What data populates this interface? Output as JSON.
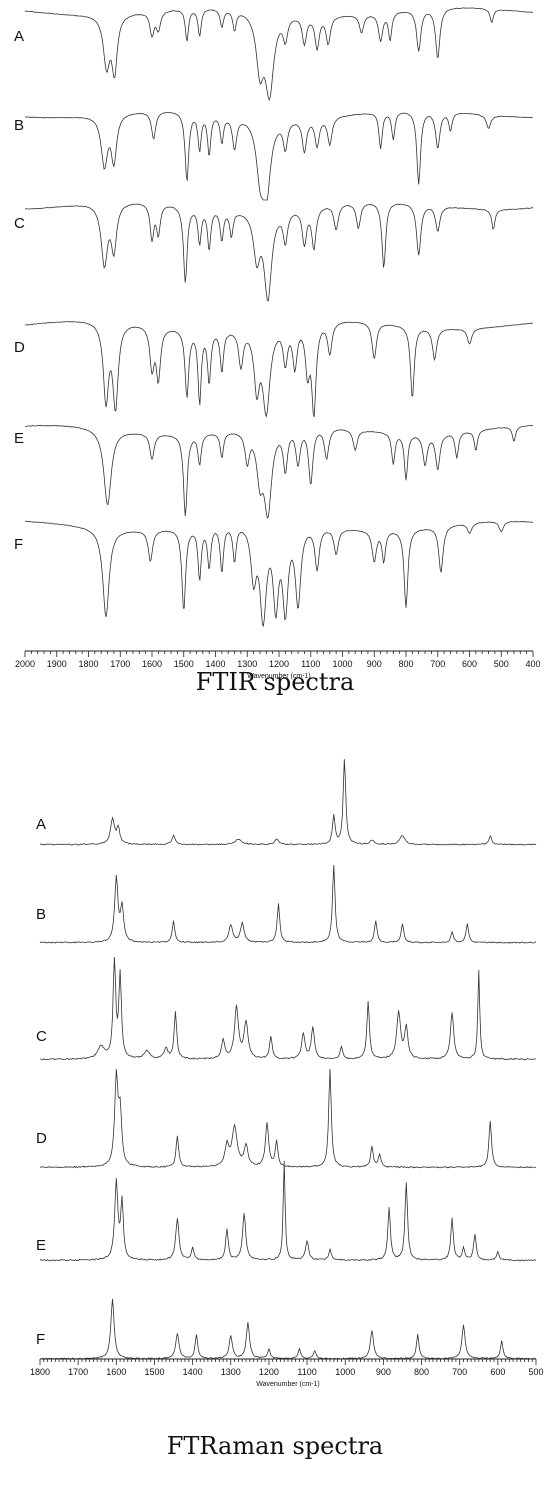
{
  "chart_data": [
    {
      "type": "line",
      "title": "FTIR spectra",
      "xlabel": "Wavenumber (cm-1)",
      "ylabel": "",
      "xlim": [
        2000,
        400
      ],
      "x_reversed": true,
      "grid": false,
      "xticks": [
        "2000",
        "1900",
        "1800",
        "1700",
        "1600",
        "1500",
        "1400",
        "1300",
        "1200",
        "1100",
        "1000",
        "900",
        "800",
        "700",
        "600",
        "500",
        "400"
      ],
      "series": [
        {
          "name": "A",
          "baseline": 0.03,
          "bands": [
            [
              1743,
              0.55,
              12
            ],
            [
              1718,
              0.6,
              10
            ],
            [
              1600,
              0.25,
              8
            ],
            [
              1580,
              0.2,
              8
            ],
            [
              1490,
              0.35,
              6
            ],
            [
              1450,
              0.3,
              6
            ],
            [
              1380,
              0.2,
              6
            ],
            [
              1340,
              0.22,
              6
            ],
            [
              1260,
              0.6,
              14
            ],
            [
              1230,
              0.85,
              16
            ],
            [
              1180,
              0.25,
              8
            ],
            [
              1120,
              0.3,
              8
            ],
            [
              1080,
              0.35,
              8
            ],
            [
              1045,
              0.3,
              8
            ],
            [
              940,
              0.2,
              8
            ],
            [
              880,
              0.3,
              8
            ],
            [
              850,
              0.3,
              6
            ],
            [
              760,
              0.45,
              8
            ],
            [
              700,
              0.55,
              8
            ],
            [
              530,
              0.15,
              6
            ]
          ]
        },
        {
          "name": "B",
          "baseline": 0.06,
          "bands": [
            [
              1750,
              0.55,
              12
            ],
            [
              1720,
              0.5,
              10
            ],
            [
              1595,
              0.3,
              8
            ],
            [
              1490,
              0.75,
              7
            ],
            [
              1450,
              0.4,
              6
            ],
            [
              1420,
              0.45,
              6
            ],
            [
              1380,
              0.3,
              6
            ],
            [
              1340,
              0.35,
              8
            ],
            [
              1260,
              0.5,
              14
            ],
            [
              1240,
              0.8,
              16
            ],
            [
              1180,
              0.3,
              8
            ],
            [
              1120,
              0.35,
              8
            ],
            [
              1080,
              0.3,
              8
            ],
            [
              1040,
              0.3,
              8
            ],
            [
              880,
              0.4,
              6
            ],
            [
              840,
              0.3,
              6
            ],
            [
              760,
              0.8,
              7
            ],
            [
              700,
              0.4,
              8
            ],
            [
              660,
              0.2,
              6
            ],
            [
              540,
              0.15,
              8
            ]
          ]
        },
        {
          "name": "C",
          "baseline": 0.03,
          "bands": [
            [
              1750,
              0.6,
              12
            ],
            [
              1720,
              0.45,
              10
            ],
            [
              1600,
              0.35,
              7
            ],
            [
              1580,
              0.3,
              7
            ],
            [
              1495,
              0.75,
              7
            ],
            [
              1450,
              0.35,
              6
            ],
            [
              1420,
              0.4,
              6
            ],
            [
              1380,
              0.3,
              6
            ],
            [
              1350,
              0.25,
              6
            ],
            [
              1270,
              0.45,
              12
            ],
            [
              1235,
              0.85,
              14
            ],
            [
              1180,
              0.3,
              8
            ],
            [
              1120,
              0.35,
              8
            ],
            [
              1090,
              0.4,
              8
            ],
            [
              1020,
              0.25,
              8
            ],
            [
              950,
              0.25,
              8
            ],
            [
              870,
              0.65,
              7
            ],
            [
              760,
              0.5,
              8
            ],
            [
              700,
              0.25,
              8
            ],
            [
              525,
              0.2,
              6
            ]
          ]
        },
        {
          "name": "D",
          "baseline": 0.02,
          "bands": [
            [
              1745,
              0.75,
              10
            ],
            [
              1715,
              0.8,
              10
            ],
            [
              1600,
              0.4,
              8
            ],
            [
              1580,
              0.5,
              8
            ],
            [
              1490,
              0.65,
              7
            ],
            [
              1450,
              0.7,
              6
            ],
            [
              1420,
              0.5,
              6
            ],
            [
              1380,
              0.4,
              6
            ],
            [
              1320,
              0.35,
              8
            ],
            [
              1270,
              0.55,
              10
            ],
            [
              1240,
              0.8,
              14
            ],
            [
              1180,
              0.35,
              8
            ],
            [
              1150,
              0.4,
              8
            ],
            [
              1110,
              0.45,
              8
            ],
            [
              1090,
              0.85,
              8
            ],
            [
              1040,
              0.3,
              8
            ],
            [
              900,
              0.35,
              8
            ],
            [
              780,
              0.7,
              7
            ],
            [
              710,
              0.3,
              8
            ],
            [
              600,
              0.15,
              8
            ]
          ]
        },
        {
          "name": "E",
          "baseline": 0.05,
          "bands": [
            [
              1740,
              0.75,
              14
            ],
            [
              1600,
              0.25,
              8
            ],
            [
              1495,
              0.8,
              7
            ],
            [
              1450,
              0.3,
              6
            ],
            [
              1380,
              0.25,
              6
            ],
            [
              1300,
              0.3,
              8
            ],
            [
              1260,
              0.45,
              12
            ],
            [
              1235,
              0.8,
              14
            ],
            [
              1180,
              0.4,
              8
            ],
            [
              1140,
              0.35,
              8
            ],
            [
              1100,
              0.55,
              8
            ],
            [
              1050,
              0.3,
              8
            ],
            [
              960,
              0.2,
              8
            ],
            [
              840,
              0.3,
              6
            ],
            [
              800,
              0.45,
              6
            ],
            [
              740,
              0.3,
              8
            ],
            [
              700,
              0.35,
              8
            ],
            [
              640,
              0.25,
              6
            ],
            [
              580,
              0.2,
              6
            ],
            [
              460,
              0.15,
              6
            ]
          ]
        },
        {
          "name": "F",
          "baseline": 0.03,
          "bands": [
            [
              1745,
              0.85,
              12
            ],
            [
              1605,
              0.3,
              8
            ],
            [
              1500,
              0.8,
              7
            ],
            [
              1450,
              0.5,
              6
            ],
            [
              1420,
              0.4,
              6
            ],
            [
              1380,
              0.45,
              6
            ],
            [
              1340,
              0.35,
              6
            ],
            [
              1280,
              0.5,
              10
            ],
            [
              1250,
              0.9,
              12
            ],
            [
              1210,
              0.75,
              10
            ],
            [
              1180,
              0.8,
              10
            ],
            [
              1140,
              0.75,
              10
            ],
            [
              1080,
              0.4,
              8
            ],
            [
              1020,
              0.25,
              8
            ],
            [
              900,
              0.3,
              8
            ],
            [
              870,
              0.3,
              6
            ],
            [
              800,
              0.75,
              7
            ],
            [
              690,
              0.45,
              8
            ],
            [
              600,
              0.1,
              8
            ],
            [
              500,
              0.1,
              8
            ]
          ]
        }
      ]
    },
    {
      "type": "line",
      "title": "FTRaman spectra",
      "xlabel": "Wavenumber (cm-1)",
      "ylabel": "",
      "xlim": [
        1800,
        500
      ],
      "x_reversed": true,
      "grid": false,
      "xticks": [
        "1800",
        "1700",
        "1600",
        "1500",
        "1400",
        "1300",
        "1200",
        "1100",
        "1000",
        "900",
        "800",
        "700",
        "600",
        "500"
      ],
      "series": [
        {
          "name": "A",
          "bands": [
            [
              1610,
              0.28,
              6
            ],
            [
              1595,
              0.18,
              5
            ],
            [
              1450,
              0.1,
              5
            ],
            [
              1280,
              0.06,
              10
            ],
            [
              1180,
              0.06,
              6
            ],
            [
              1030,
              0.32,
              4
            ],
            [
              1002,
              0.95,
              4
            ],
            [
              930,
              0.05,
              6
            ],
            [
              850,
              0.1,
              8
            ],
            [
              620,
              0.1,
              4
            ]
          ]
        },
        {
          "name": "B",
          "bands": [
            [
              1600,
              0.75,
              5
            ],
            [
              1585,
              0.4,
              5
            ],
            [
              1450,
              0.25,
              4
            ],
            [
              1300,
              0.2,
              6
            ],
            [
              1270,
              0.22,
              6
            ],
            [
              1175,
              0.45,
              4
            ],
            [
              1030,
              0.9,
              4
            ],
            [
              920,
              0.25,
              4
            ],
            [
              850,
              0.22,
              4
            ],
            [
              720,
              0.12,
              4
            ],
            [
              680,
              0.22,
              4
            ]
          ]
        },
        {
          "name": "C",
          "bands": [
            [
              1640,
              0.12,
              10
            ],
            [
              1605,
              0.95,
              4
            ],
            [
              1590,
              0.8,
              4
            ],
            [
              1520,
              0.08,
              8
            ],
            [
              1470,
              0.1,
              6
            ],
            [
              1445,
              0.45,
              4
            ],
            [
              1320,
              0.18,
              5
            ],
            [
              1285,
              0.5,
              6
            ],
            [
              1260,
              0.35,
              6
            ],
            [
              1195,
              0.22,
              4
            ],
            [
              1110,
              0.25,
              5
            ],
            [
              1085,
              0.3,
              5
            ],
            [
              1010,
              0.12,
              4
            ],
            [
              940,
              0.55,
              4
            ],
            [
              860,
              0.45,
              6
            ],
            [
              840,
              0.3,
              5
            ],
            [
              720,
              0.45,
              5
            ],
            [
              650,
              0.85,
              3
            ]
          ]
        },
        {
          "name": "D",
          "bands": [
            [
              1600,
              0.85,
              5
            ],
            [
              1590,
              0.5,
              5
            ],
            [
              1440,
              0.3,
              4
            ],
            [
              1310,
              0.2,
              6
            ],
            [
              1290,
              0.38,
              8
            ],
            [
              1260,
              0.2,
              6
            ],
            [
              1205,
              0.42,
              5
            ],
            [
              1180,
              0.25,
              4
            ],
            [
              1040,
              0.95,
              4
            ],
            [
              930,
              0.2,
              4
            ],
            [
              910,
              0.12,
              4
            ],
            [
              620,
              0.45,
              4
            ]
          ]
        },
        {
          "name": "E",
          "bands": [
            [
              1600,
              0.75,
              5
            ],
            [
              1585,
              0.55,
              4
            ],
            [
              1440,
              0.4,
              5
            ],
            [
              1400,
              0.12,
              4
            ],
            [
              1310,
              0.3,
              4
            ],
            [
              1265,
              0.45,
              5
            ],
            [
              1160,
              0.95,
              3
            ],
            [
              1100,
              0.18,
              5
            ],
            [
              1040,
              0.1,
              4
            ],
            [
              885,
              0.5,
              4
            ],
            [
              840,
              0.75,
              4
            ],
            [
              720,
              0.4,
              4
            ],
            [
              690,
              0.12,
              4
            ],
            [
              660,
              0.25,
              4
            ],
            [
              600,
              0.08,
              4
            ]
          ]
        },
        {
          "name": "F",
          "bands": [
            [
              1610,
              0.75,
              5
            ],
            [
              1440,
              0.32,
              5
            ],
            [
              1390,
              0.3,
              4
            ],
            [
              1300,
              0.28,
              5
            ],
            [
              1255,
              0.45,
              5
            ],
            [
              1200,
              0.12,
              4
            ],
            [
              1120,
              0.12,
              4
            ],
            [
              1080,
              0.1,
              4
            ],
            [
              930,
              0.35,
              5
            ],
            [
              810,
              0.3,
              4
            ],
            [
              690,
              0.42,
              5
            ],
            [
              590,
              0.22,
              4
            ]
          ]
        }
      ]
    }
  ]
}
